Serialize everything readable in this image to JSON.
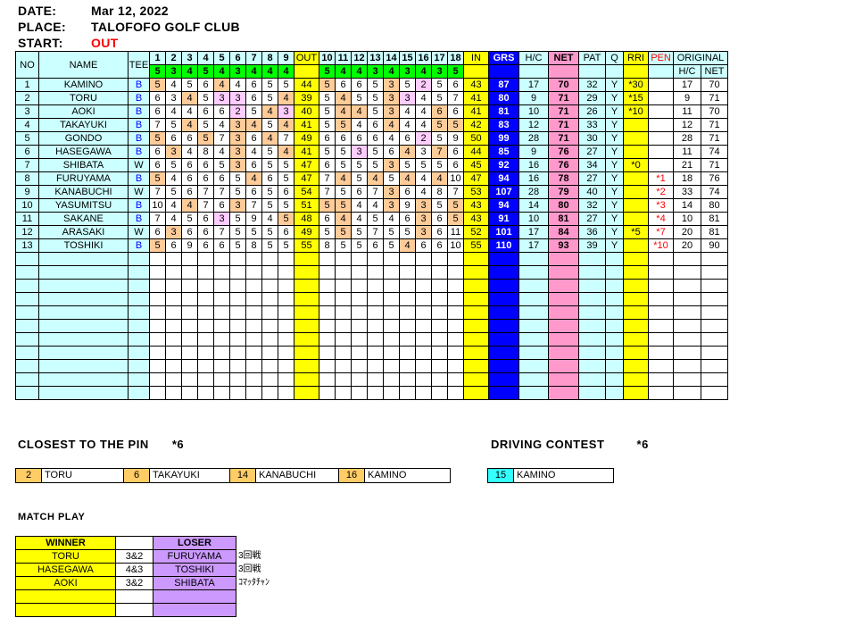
{
  "header": {
    "date_label": "DATE:",
    "date": "Mar 12, 2022",
    "place_label": "PLACE:",
    "place": "TALOFOFO GOLF CLUB",
    "start_label": "START:",
    "start": "OUT"
  },
  "columns": {
    "no": "NO",
    "name": "NAME",
    "tee": "TEE",
    "holes_out": [
      "1",
      "2",
      "3",
      "4",
      "5",
      "6",
      "7",
      "8",
      "9"
    ],
    "out": "OUT",
    "holes_in": [
      "10",
      "11",
      "12",
      "13",
      "14",
      "15",
      "16",
      "17",
      "18"
    ],
    "in": "IN",
    "grs": "GRS",
    "hc": "H/C",
    "net": "NET",
    "pat": "PAT",
    "q": "Q",
    "rri": "RRI",
    "pen": "PEN",
    "original": "ORIGINAL",
    "orig_hc": "H/C",
    "orig_net": "NET"
  },
  "par_out": [
    "5",
    "3",
    "4",
    "5",
    "4",
    "3",
    "4",
    "4",
    "4"
  ],
  "par_in": [
    "5",
    "4",
    "4",
    "3",
    "4",
    "3",
    "4",
    "3",
    "5"
  ],
  "players": [
    {
      "no": "1",
      "name": "KAMINO",
      "tee": "B",
      "scores": [
        "5",
        "4",
        "5",
        "6",
        "4",
        "4",
        "6",
        "5",
        "5"
      ],
      "out": "44",
      "in_scores": [
        "5",
        "6",
        "6",
        "5",
        "3",
        "5",
        "2",
        "5",
        "6"
      ],
      "in": "43",
      "grs": "87",
      "hc": "17",
      "net": "70",
      "pat": "32",
      "q": "Y",
      "rri": "*30",
      "pen": "",
      "orig_hc": "17",
      "orig_net": "70"
    },
    {
      "no": "2",
      "name": "TORU",
      "tee": "B",
      "scores": [
        "6",
        "3",
        "4",
        "5",
        "3",
        "3",
        "6",
        "5",
        "4"
      ],
      "out": "39",
      "in_scores": [
        "5",
        "4",
        "5",
        "5",
        "3",
        "3",
        "4",
        "5",
        "7"
      ],
      "in": "41",
      "grs": "80",
      "hc": "9",
      "net": "71",
      "pat": "29",
      "q": "Y",
      "rri": "*15",
      "pen": "",
      "orig_hc": "9",
      "orig_net": "71"
    },
    {
      "no": "3",
      "name": "AOKI",
      "tee": "B",
      "scores": [
        "6",
        "4",
        "4",
        "6",
        "6",
        "2",
        "5",
        "4",
        "3"
      ],
      "out": "40",
      "in_scores": [
        "5",
        "4",
        "4",
        "5",
        "3",
        "4",
        "4",
        "6",
        "6"
      ],
      "in": "41",
      "grs": "81",
      "hc": "10",
      "net": "71",
      "pat": "26",
      "q": "Y",
      "rri": "*10",
      "pen": "",
      "orig_hc": "11",
      "orig_net": "70"
    },
    {
      "no": "4",
      "name": "TAKAYUKI",
      "tee": "B",
      "scores": [
        "7",
        "5",
        "4",
        "5",
        "4",
        "3",
        "4",
        "5",
        "4"
      ],
      "out": "41",
      "in_scores": [
        "5",
        "5",
        "4",
        "6",
        "4",
        "4",
        "4",
        "5",
        "5"
      ],
      "in": "42",
      "grs": "83",
      "hc": "12",
      "net": "71",
      "pat": "33",
      "q": "Y",
      "rri": "",
      "pen": "",
      "orig_hc": "12",
      "orig_net": "71"
    },
    {
      "no": "5",
      "name": "GONDO",
      "tee": "B",
      "scores": [
        "5",
        "6",
        "6",
        "5",
        "7",
        "3",
        "6",
        "4",
        "7"
      ],
      "out": "49",
      "in_scores": [
        "6",
        "6",
        "6",
        "6",
        "4",
        "6",
        "2",
        "5",
        "9"
      ],
      "in": "50",
      "grs": "99",
      "hc": "28",
      "net": "71",
      "pat": "30",
      "q": "Y",
      "rri": "",
      "pen": "",
      "orig_hc": "28",
      "orig_net": "71"
    },
    {
      "no": "6",
      "name": "HASEGAWA",
      "tee": "B",
      "scores": [
        "6",
        "3",
        "4",
        "8",
        "4",
        "3",
        "4",
        "5",
        "4"
      ],
      "out": "41",
      "in_scores": [
        "5",
        "5",
        "3",
        "5",
        "6",
        "4",
        "3",
        "7",
        "6"
      ],
      "in": "44",
      "grs": "85",
      "hc": "9",
      "net": "76",
      "pat": "27",
      "q": "Y",
      "rri": "",
      "pen": "",
      "orig_hc": "11",
      "orig_net": "74"
    },
    {
      "no": "7",
      "name": "SHIBATA",
      "tee": "W",
      "scores": [
        "6",
        "5",
        "6",
        "6",
        "5",
        "3",
        "6",
        "5",
        "5"
      ],
      "out": "47",
      "in_scores": [
        "6",
        "5",
        "5",
        "5",
        "3",
        "5",
        "5",
        "5",
        "6"
      ],
      "in": "45",
      "grs": "92",
      "hc": "16",
      "net": "76",
      "pat": "34",
      "q": "Y",
      "rri": "*0",
      "pen": "",
      "orig_hc": "21",
      "orig_net": "71"
    },
    {
      "no": "8",
      "name": "FURUYAMA",
      "tee": "B",
      "scores": [
        "5",
        "4",
        "6",
        "6",
        "6",
        "5",
        "4",
        "6",
        "5"
      ],
      "out": "47",
      "in_scores": [
        "7",
        "4",
        "5",
        "4",
        "5",
        "4",
        "4",
        "4",
        "10"
      ],
      "in": "47",
      "grs": "94",
      "hc": "16",
      "net": "78",
      "pat": "27",
      "q": "Y",
      "rri": "",
      "pen": "*1",
      "orig_hc": "18",
      "orig_net": "76"
    },
    {
      "no": "9",
      "name": "KANABUCHI",
      "tee": "W",
      "scores": [
        "7",
        "5",
        "6",
        "7",
        "7",
        "5",
        "6",
        "5",
        "6"
      ],
      "out": "54",
      "in_scores": [
        "7",
        "5",
        "6",
        "7",
        "3",
        "6",
        "4",
        "8",
        "7"
      ],
      "in": "53",
      "grs": "107",
      "hc": "28",
      "net": "79",
      "pat": "40",
      "q": "Y",
      "rri": "",
      "pen": "*2",
      "orig_hc": "33",
      "orig_net": "74"
    },
    {
      "no": "10",
      "name": "YASUMITSU",
      "tee": "B",
      "scores": [
        "10",
        "4",
        "4",
        "7",
        "6",
        "3",
        "7",
        "5",
        "5"
      ],
      "out": "51",
      "in_scores": [
        "5",
        "5",
        "4",
        "4",
        "3",
        "9",
        "3",
        "5",
        "5"
      ],
      "in": "43",
      "grs": "94",
      "hc": "14",
      "net": "80",
      "pat": "32",
      "q": "Y",
      "rri": "",
      "pen": "*3",
      "orig_hc": "14",
      "orig_net": "80"
    },
    {
      "no": "11",
      "name": "SAKANE",
      "tee": "B",
      "scores": [
        "7",
        "4",
        "5",
        "6",
        "3",
        "5",
        "9",
        "4",
        "5"
      ],
      "out": "48",
      "in_scores": [
        "6",
        "4",
        "4",
        "5",
        "4",
        "6",
        "3",
        "6",
        "5"
      ],
      "in": "43",
      "grs": "91",
      "hc": "10",
      "net": "81",
      "pat": "27",
      "q": "Y",
      "rri": "",
      "pen": "*4",
      "orig_hc": "10",
      "orig_net": "81"
    },
    {
      "no": "12",
      "name": "ARASAKI",
      "tee": "W",
      "scores": [
        "6",
        "3",
        "6",
        "6",
        "7",
        "5",
        "5",
        "5",
        "6"
      ],
      "out": "49",
      "in_scores": [
        "5",
        "5",
        "5",
        "7",
        "5",
        "5",
        "3",
        "6",
        "11"
      ],
      "in": "52",
      "grs": "101",
      "hc": "17",
      "net": "84",
      "pat": "36",
      "q": "Y",
      "rri": "*5",
      "pen": "*7",
      "orig_hc": "20",
      "orig_net": "81"
    },
    {
      "no": "13",
      "name": "TOSHIKI",
      "tee": "B",
      "scores": [
        "5",
        "6",
        "9",
        "6",
        "6",
        "5",
        "8",
        "5",
        "5"
      ],
      "out": "55",
      "in_scores": [
        "8",
        "5",
        "5",
        "6",
        "5",
        "4",
        "6",
        "6",
        "10"
      ],
      "in": "55",
      "grs": "110",
      "hc": "17",
      "net": "93",
      "pat": "39",
      "q": "Y",
      "rri": "",
      "pen": "*10",
      "orig_hc": "20",
      "orig_net": "90"
    }
  ],
  "closest": {
    "title": "CLOSEST TO THE PIN",
    "mark": "*6",
    "items": [
      {
        "hole": "2",
        "name": "TORU"
      },
      {
        "hole": "6",
        "name": "TAKAYUKI"
      },
      {
        "hole": "14",
        "name": "KANABUCHI"
      },
      {
        "hole": "16",
        "name": "KAMINO"
      }
    ]
  },
  "driving": {
    "title": "DRIVING CONTEST",
    "mark": "*6",
    "hole": "15",
    "name": "KAMINO"
  },
  "match": {
    "title": "MATCH PLAY",
    "winner_label": "WINNER",
    "loser_label": "LOSER",
    "rows": [
      {
        "winner": "TORU",
        "score": "3&2",
        "loser": "FURUYAMA",
        "note": "3回戦"
      },
      {
        "winner": "HASEGAWA",
        "score": "4&3",
        "loser": "TOSHIKI",
        "note": "3回戦"
      },
      {
        "winner": "AOKI",
        "score": "3&2",
        "loser": "SHIBATA",
        "note": "ｺﾏｯﾀﾁｬﾝ"
      }
    ]
  },
  "colors": {
    "cyan": "#ccffff",
    "yellow": "#ffff00",
    "green": "#00ff00",
    "blue": "#0000ff",
    "pink": "#ff99cc",
    "orange": "#ffcc99",
    "light_pink": "#ffccff",
    "purple": "#cc99ff"
  }
}
